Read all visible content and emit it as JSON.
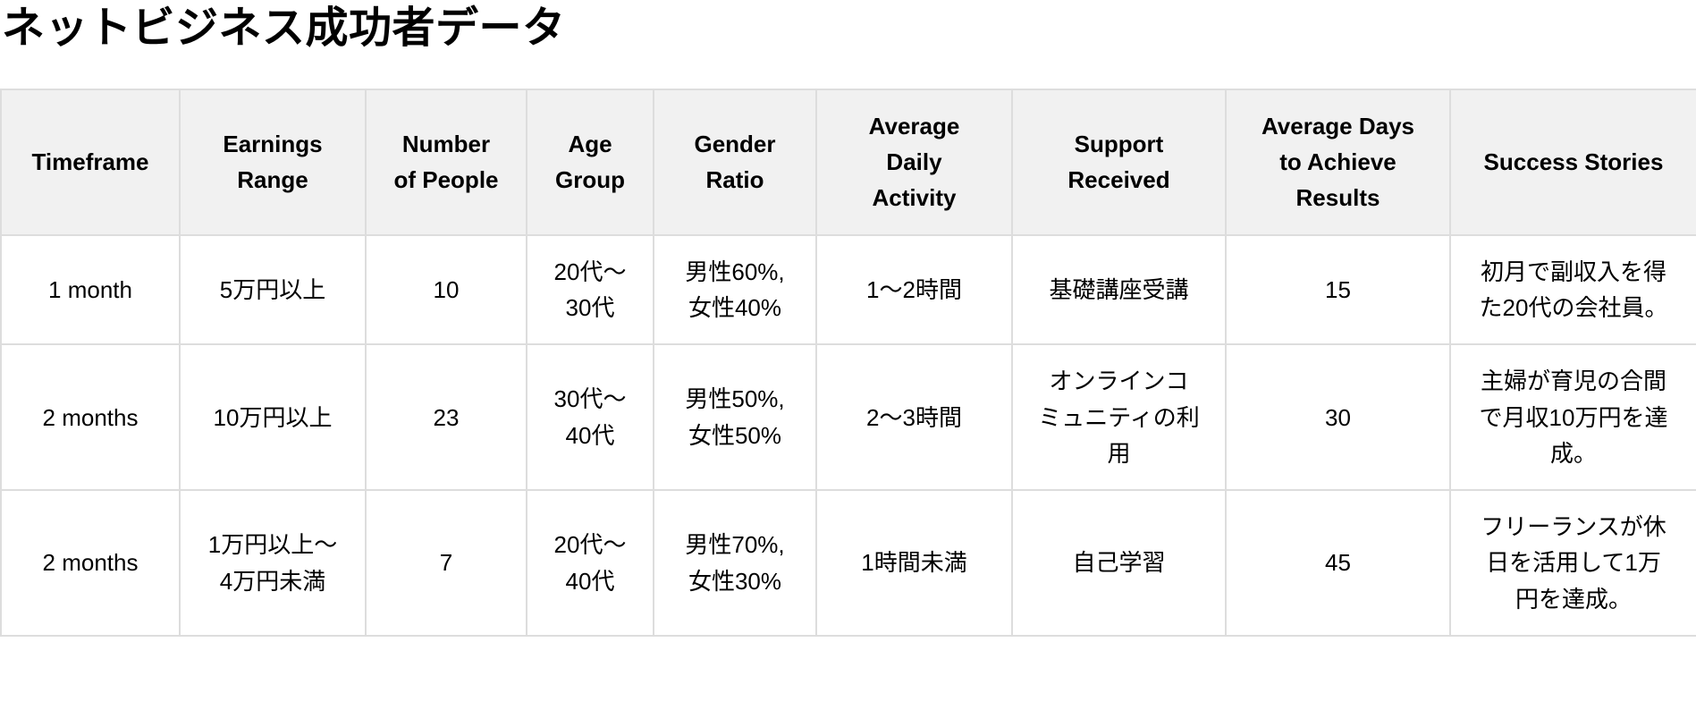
{
  "page_title": "ネットビジネス成功者データ",
  "colors": {
    "page_bg": "#ffffff",
    "header_bg": "#f1f1f1",
    "border": "#dddddd",
    "text": "#000000"
  },
  "chart_data": {
    "type": "table",
    "title": "ネットビジネス成功者データ",
    "columns": [
      "Timeframe",
      "Earnings Range",
      "Number of People",
      "Age Group",
      "Gender Ratio",
      "Average Daily Activity",
      "Support Received",
      "Average Days to Achieve Results",
      "Success Stories"
    ],
    "rows": [
      [
        "1 month",
        "5万円以上",
        "10",
        "20代～30代",
        "男性60%, 女性40%",
        "1～2時間",
        "基礎講座受講",
        "15",
        "初月で副収入を得た20代の会社員。"
      ],
      [
        "2 months",
        "10万円以上",
        "23",
        "30代～40代",
        "男性50%, 女性50%",
        "2～3時間",
        "オンラインコミュニティの利用",
        "30",
        "主婦が育児の合間で月収10万円を達成。"
      ],
      [
        "2 months",
        "1万円以上～4万円未満",
        "7",
        "20代～40代",
        "男性70%, 女性30%",
        "1時間未満",
        "自己学習",
        "45",
        "フリーランスが休日を活用して1万円を達成。"
      ]
    ]
  }
}
